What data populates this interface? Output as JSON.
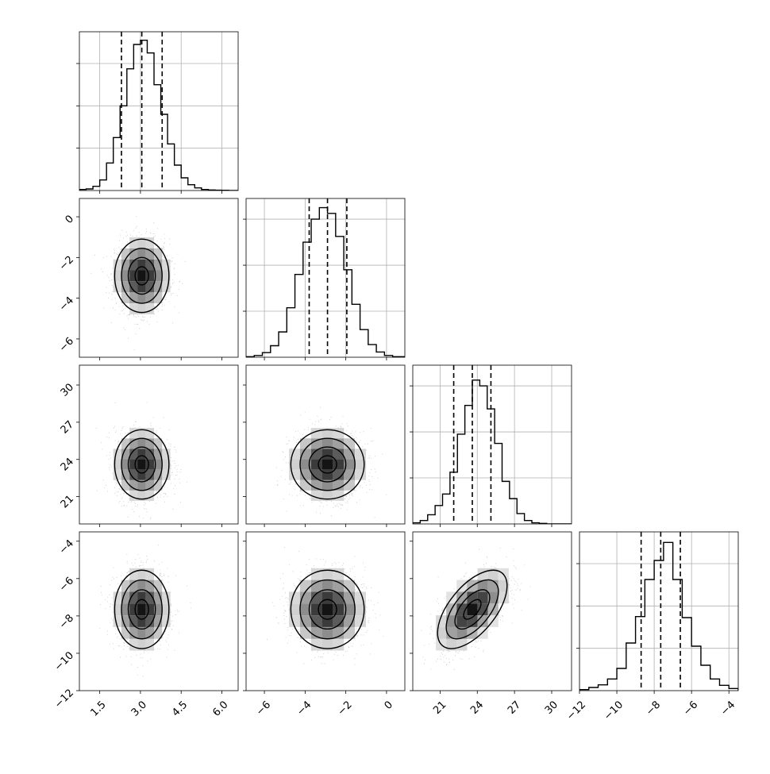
{
  "chart_data": {
    "type": "corner",
    "colors": {
      "hist_line": "#000000",
      "quantile_line": "#000000",
      "grid": "#b0b0b0",
      "scatter": "#9a9a9a",
      "density_dark": "#000000",
      "density_light": "#ffffff"
    },
    "grid": true,
    "quantile_style": "dashed",
    "params": [
      {
        "ticks": [
          "1.5",
          "3.0",
          "4.5",
          "6.0"
        ],
        "tick_values": [
          1.5,
          3.0,
          4.5,
          6.0
        ],
        "range": [
          0.75,
          6.6
        ],
        "mean": 3.05,
        "sd": 0.5,
        "quantiles": [
          2.3,
          3.05,
          3.8
        ]
      },
      {
        "ticks": [
          "−6",
          "−4",
          "−2",
          "0"
        ],
        "tick_values": [
          -6,
          -4,
          -2,
          0
        ],
        "range": [
          -6.9,
          0.9
        ],
        "mean": -2.9,
        "sd": 0.9,
        "quantiles": [
          -3.8,
          -2.9,
          -1.95
        ]
      },
      {
        "ticks": [
          "21",
          "24",
          "27",
          "30"
        ],
        "tick_values": [
          21,
          24,
          27,
          30
        ],
        "range": [
          18.8,
          31.6
        ],
        "mean": 23.6,
        "sd": 1.4,
        "quantiles": [
          22.1,
          23.6,
          25.1
        ]
      },
      {
        "ticks": [
          "−12",
          "−10",
          "−8",
          "−6",
          "−4"
        ],
        "tick_values": [
          -12,
          -10,
          -8,
          -6,
          -4
        ],
        "range": [
          -12.0,
          -3.5
        ],
        "mean": -7.65,
        "sd": 1.05,
        "quantiles": [
          -8.7,
          -7.65,
          -6.6
        ]
      }
    ],
    "histograms": [
      {
        "edges": [
          0.75,
          1.0,
          1.25,
          1.5,
          1.75,
          2.0,
          2.25,
          2.5,
          2.75,
          3.0,
          3.25,
          3.5,
          3.75,
          4.0,
          4.25,
          4.5,
          4.75,
          5.0,
          5.25,
          5.5,
          5.75,
          6.0,
          6.25,
          6.6
        ],
        "counts": [
          10,
          15,
          40,
          100,
          260,
          500,
          800,
          1150,
          1380,
          1420,
          1300,
          1000,
          720,
          440,
          240,
          120,
          55,
          25,
          10,
          5,
          3,
          2,
          0
        ],
        "ymax": 1500,
        "yticks": [
          400,
          800,
          1200
        ]
      },
      {
        "edges": [
          -6.9,
          -6.5,
          -6.1,
          -5.7,
          -5.3,
          -4.9,
          -4.5,
          -4.1,
          -3.7,
          -3.3,
          -2.9,
          -2.5,
          -2.1,
          -1.7,
          -1.3,
          -0.9,
          -0.5,
          -0.1,
          0.3,
          0.9
        ],
        "counts": [
          5,
          15,
          40,
          100,
          220,
          430,
          720,
          1000,
          1200,
          1300,
          1250,
          1050,
          760,
          460,
          240,
          110,
          45,
          15,
          5
        ],
        "ymax": 1380,
        "yticks": [
          400,
          800,
          1200
        ]
      },
      {
        "edges": [
          18.8,
          19.4,
          20.0,
          20.6,
          21.2,
          21.8,
          22.4,
          23.0,
          23.6,
          24.2,
          24.8,
          25.4,
          26.0,
          26.6,
          27.2,
          27.8,
          28.4,
          29.0,
          29.6,
          31.6
        ],
        "counts": [
          10,
          30,
          80,
          160,
          260,
          450,
          780,
          1030,
          1250,
          1200,
          1000,
          700,
          370,
          220,
          90,
          30,
          10,
          5,
          0
        ],
        "ymax": 1380,
        "yticks": [
          400,
          800,
          1200
        ]
      },
      {
        "edges": [
          -12.0,
          -11.5,
          -11.0,
          -10.5,
          -10.0,
          -9.5,
          -9.0,
          -8.5,
          -8.0,
          -7.5,
          -7.0,
          -6.5,
          -6.0,
          -5.5,
          -5.0,
          -4.5,
          -4.0,
          -3.5
        ],
        "counts": [
          10,
          30,
          55,
          110,
          210,
          450,
          700,
          1050,
          1230,
          1400,
          1050,
          690,
          420,
          240,
          110,
          50,
          20
        ],
        "ymax": 1500,
        "yticks": [
          400,
          800,
          1200
        ]
      }
    ],
    "correlations": [
      {
        "pair": [
          1,
          0
        ],
        "rho": 0.0
      },
      {
        "pair": [
          2,
          0
        ],
        "rho": 0.0
      },
      {
        "pair": [
          2,
          1
        ],
        "rho": 0.0
      },
      {
        "pair": [
          3,
          0
        ],
        "rho": 0.0
      },
      {
        "pair": [
          3,
          1
        ],
        "rho": 0.0
      },
      {
        "pair": [
          3,
          2
        ],
        "rho": 0.6
      }
    ],
    "contour_sigmas": [
      0.5,
      1.0,
      1.5,
      2.0
    ]
  }
}
